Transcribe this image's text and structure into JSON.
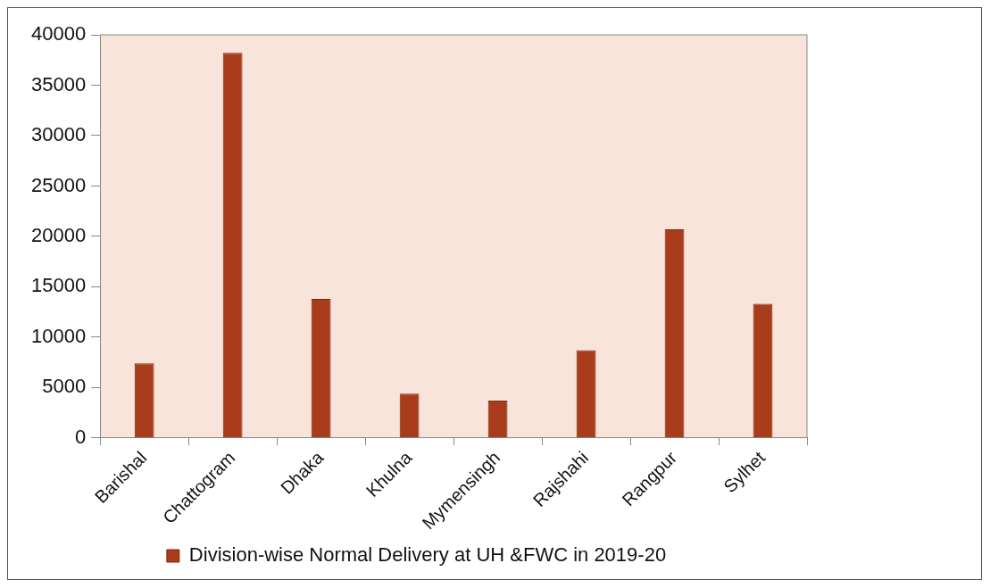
{
  "chart_data": {
    "type": "bar",
    "categories": [
      "Barishal",
      "Chattogram",
      "Dhaka",
      "Khulna",
      "Mymensingh",
      "Rajshahi",
      "Rangpur",
      "Sylhet"
    ],
    "series": [
      {
        "name": "Division-wise Normal Delivery at UH &FWC in 2019-20",
        "color": "#a93c1a",
        "values": [
          7400,
          38200,
          13800,
          4400,
          3700,
          8700,
          20700,
          13300
        ]
      }
    ],
    "ylim": [
      0,
      40000
    ],
    "yticks": [
      0,
      5000,
      10000,
      15000,
      20000,
      25000,
      30000,
      35000,
      40000
    ],
    "grid": false,
    "legend": "bottom"
  }
}
